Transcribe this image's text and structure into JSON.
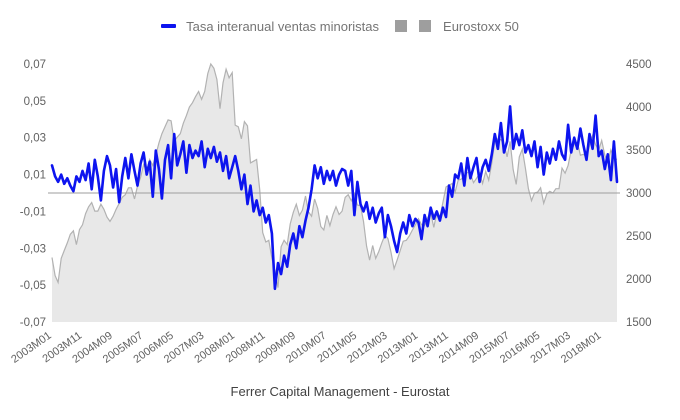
{
  "legend": {
    "series1_label": "Tasa interanual ventas minoristas",
    "series2_label": "Eurostoxx 50"
  },
  "caption": "Ferrer Capital Management - Eurostat",
  "colors": {
    "retail_line": "#0d14ef",
    "eurostoxx_fill": "#e8e8e8",
    "eurostoxx_stroke": "#b2b2b2",
    "zero_line": "#9e9e9e",
    "axis_text": "#616161",
    "legend_text": "#757575"
  },
  "chart_data": {
    "type": "line",
    "x_tick_labels": [
      "2003M01",
      "2003M11",
      "2004M09",
      "2005M07",
      "2006M05",
      "2007M03",
      "2008M01",
      "2008M11",
      "2009M09",
      "2010M07",
      "2011M05",
      "2012M03",
      "2013M01",
      "2013M11",
      "2014M09",
      "2015M07",
      "2016M05",
      "2017M03",
      "2018M01"
    ],
    "x_tick_every_points": 10,
    "x_range": [
      "2003M01",
      "2018M06"
    ],
    "left_axis": {
      "title": "Tasa interanual ventas minoristas",
      "min": -0.07,
      "max": 0.07,
      "tick_labels": [
        "0,07",
        "0,05",
        "0,03",
        "0,01",
        "-0,01",
        "-0,03",
        "-0,05",
        "-0,07"
      ]
    },
    "right_axis": {
      "title": "Eurostoxx 50",
      "min": 1500,
      "max": 4500,
      "tick_labels": [
        "4500",
        "4000",
        "3500",
        "3000",
        "2500",
        "2000",
        "1500"
      ]
    },
    "grid": "zero-line-only",
    "legend_position": "top-center",
    "series": [
      {
        "name": "Tasa interanual ventas minoristas",
        "axis": "left",
        "style": "line",
        "values": [
          0.015,
          0.009,
          0.006,
          0.01,
          0.005,
          0.008,
          0.004,
          0.001,
          0.009,
          0.006,
          0.012,
          0.007,
          0.016,
          0.002,
          0.018,
          0.009,
          -0.004,
          0.012,
          0.02,
          0.015,
          0.003,
          0.013,
          -0.005,
          0.009,
          0.019,
          0.008,
          0.021,
          0.012,
          0.004,
          0.016,
          0.022,
          0.01,
          0.017,
          -0.002,
          0.023,
          0.013,
          -0.003,
          0.018,
          0.026,
          0.008,
          0.032,
          0.015,
          0.021,
          0.028,
          0.011,
          0.026,
          0.019,
          0.023,
          0.02,
          0.028,
          0.014,
          0.024,
          0.019,
          0.025,
          0.017,
          0.022,
          0.012,
          0.02,
          0.008,
          0.014,
          0.02,
          0.012,
          0.002,
          0.01,
          -0.006,
          0.004,
          -0.01,
          -0.004,
          -0.012,
          -0.008,
          -0.016,
          -0.012,
          -0.022,
          -0.052,
          -0.038,
          -0.044,
          -0.034,
          -0.04,
          -0.028,
          -0.022,
          -0.03,
          -0.018,
          -0.024,
          -0.015,
          -0.008,
          0.002,
          0.015,
          0.008,
          0.014,
          0.005,
          0.012,
          0.007,
          0.012,
          0.004,
          0.01,
          0.013,
          0.012,
          0.004,
          0.012,
          -0.012,
          0.006,
          -0.006,
          -0.01,
          -0.005,
          -0.014,
          -0.008,
          -0.016,
          -0.011,
          -0.008,
          -0.024,
          -0.012,
          -0.018,
          -0.026,
          -0.032,
          -0.022,
          -0.016,
          -0.022,
          -0.012,
          -0.018,
          -0.014,
          -0.016,
          -0.025,
          -0.012,
          -0.018,
          -0.008,
          -0.014,
          -0.01,
          -0.015,
          -0.008,
          -0.013,
          0.004,
          -0.002,
          0.01,
          0.008,
          0.016,
          0.004,
          0.019,
          0.008,
          0.014,
          0.019,
          0.006,
          0.014,
          0.018,
          0.012,
          0.021,
          0.032,
          0.024,
          0.038,
          0.022,
          0.028,
          0.047,
          0.024,
          0.032,
          0.026,
          0.034,
          0.022,
          0.026,
          0.02,
          0.028,
          0.014,
          0.025,
          0.01,
          0.022,
          0.016,
          0.024,
          0.018,
          0.028,
          0.021,
          0.018,
          0.037,
          0.022,
          0.03,
          0.024,
          0.035,
          0.026,
          0.018,
          0.032,
          0.024,
          0.042,
          0.02,
          0.023,
          0.013,
          0.021,
          0.007,
          0.028,
          0.006
        ]
      },
      {
        "name": "Eurostoxx 50",
        "axis": "right",
        "style": "area",
        "values": [
          2250,
          2040,
          1960,
          2240,
          2330,
          2420,
          2520,
          2560,
          2400,
          2575,
          2630,
          2760,
          2840,
          2890,
          2790,
          2790,
          2870,
          2810,
          2720,
          2670,
          2730,
          2810,
          2880,
          2950,
          2980,
          3060,
          3060,
          2930,
          3080,
          3180,
          3330,
          3260,
          3390,
          3320,
          3440,
          3580,
          3690,
          3770,
          3850,
          3840,
          3600,
          3650,
          3690,
          3810,
          3900,
          4000,
          4050,
          4120,
          4180,
          4090,
          4180,
          4390,
          4500,
          4450,
          4320,
          3980,
          4280,
          4440,
          4340,
          4400,
          3790,
          3770,
          3630,
          3830,
          3780,
          3350,
          3370,
          3390,
          3040,
          2540,
          2430,
          2450,
          2240,
          2100,
          1900,
          2375,
          2450,
          2400,
          2640,
          2775,
          2870,
          2740,
          2800,
          2965,
          2780,
          2730,
          2930,
          2820,
          2610,
          2570,
          2740,
          2620,
          2750,
          2840,
          2750,
          2790,
          2950,
          2980,
          2910,
          2990,
          2860,
          2850,
          2670,
          2380,
          2220,
          2390,
          2240,
          2320,
          2420,
          2510,
          2470,
          2310,
          2120,
          2220,
          2330,
          2440,
          2450,
          2500,
          2570,
          2630,
          2700,
          2630,
          2620,
          2710,
          2770,
          2600,
          2770,
          2720,
          2890,
          3070,
          3090,
          3110,
          3010,
          3150,
          3160,
          3200,
          3240,
          3230,
          3120,
          3170,
          3230,
          3110,
          3250,
          3150,
          3350,
          3600,
          3630,
          3620,
          3570,
          3420,
          3600,
          3270,
          3100,
          3420,
          3510,
          3290,
          3050,
          2910,
          3000,
          3010,
          3060,
          2880,
          2990,
          3020,
          3000,
          3050,
          3050,
          3290,
          3230,
          3320,
          3500,
          3560,
          3590,
          3440,
          3450,
          3420,
          3550,
          3670,
          3560,
          3500,
          3610,
          3440,
          3360,
          3500,
          3410,
          3390
        ]
      }
    ]
  }
}
